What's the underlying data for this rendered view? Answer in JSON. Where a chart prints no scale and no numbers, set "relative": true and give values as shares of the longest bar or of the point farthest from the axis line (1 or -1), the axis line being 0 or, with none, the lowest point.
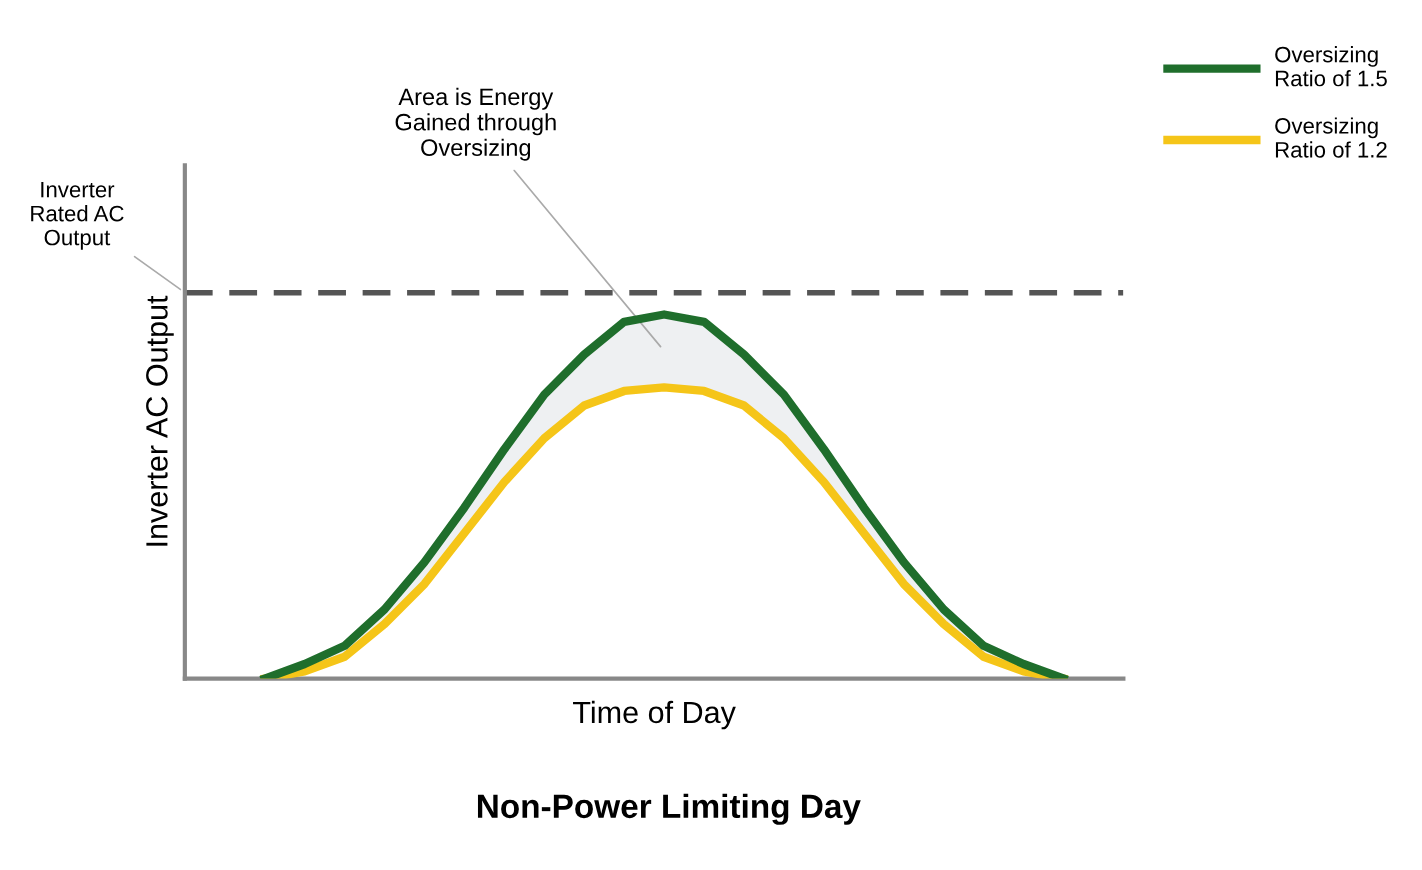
{
  "chart_data": {
    "type": "line",
    "relative": true,
    "title": "Non-Power Limiting Day",
    "xlabel": "Time of Day",
    "ylabel": "Inverter AC Output",
    "categories": [
      null,
      null,
      null,
      null,
      null,
      null,
      null,
      null,
      null,
      null,
      null,
      null,
      null,
      null,
      null,
      null,
      null,
      null,
      null,
      null,
      null
    ],
    "series": [
      {
        "name": "Oversizing\nRatio of 1.5",
        "color": "#1f6e2c",
        "values": [
          0,
          0.04,
          0.09,
          0.19,
          0.32,
          0.47,
          0.63,
          0.78,
          0.89,
          0.98,
          1,
          0.98,
          0.89,
          0.78,
          0.63,
          0.47,
          0.32,
          0.19,
          0.09,
          0.04,
          0
        ],
        "lower": [
          0,
          0.02,
          0.06,
          0.15,
          0.26,
          0.4,
          0.54,
          0.66,
          0.75,
          0.79,
          0.8,
          0.79,
          0.75,
          0.66,
          0.54,
          0.4,
          0.26,
          0.15,
          0.06,
          0.02,
          0
        ],
        "upper": [
          0,
          0.04,
          0.09,
          0.19,
          0.32,
          0.47,
          0.63,
          0.78,
          0.89,
          0.98,
          1,
          0.98,
          0.89,
          0.78,
          0.63,
          0.47,
          0.32,
          0.19,
          0.09,
          0.04,
          0
        ]
      },
      {
        "name": "Oversizing\nRatio of 1.2",
        "color": "#f5c518",
        "values": [
          0,
          0.02,
          0.06,
          0.15,
          0.26,
          0.4,
          0.54,
          0.66,
          0.75,
          0.79,
          0.8,
          0.79,
          0.75,
          0.66,
          0.54,
          0.4,
          0.26,
          0.15,
          0.06,
          0.02,
          0
        ]
      }
    ],
    "ref_lines": [
      {
        "axis": "y",
        "value": 1.06,
        "label": "Inverter\nRated AC\nOutput",
        "color": "#555555",
        "line_style": "dashed"
      }
    ],
    "annotations": [
      "Area is Energy\nGained through\nOversizing"
    ],
    "legend": "top right",
    "marker": "none",
    "line_style": "solid"
  }
}
